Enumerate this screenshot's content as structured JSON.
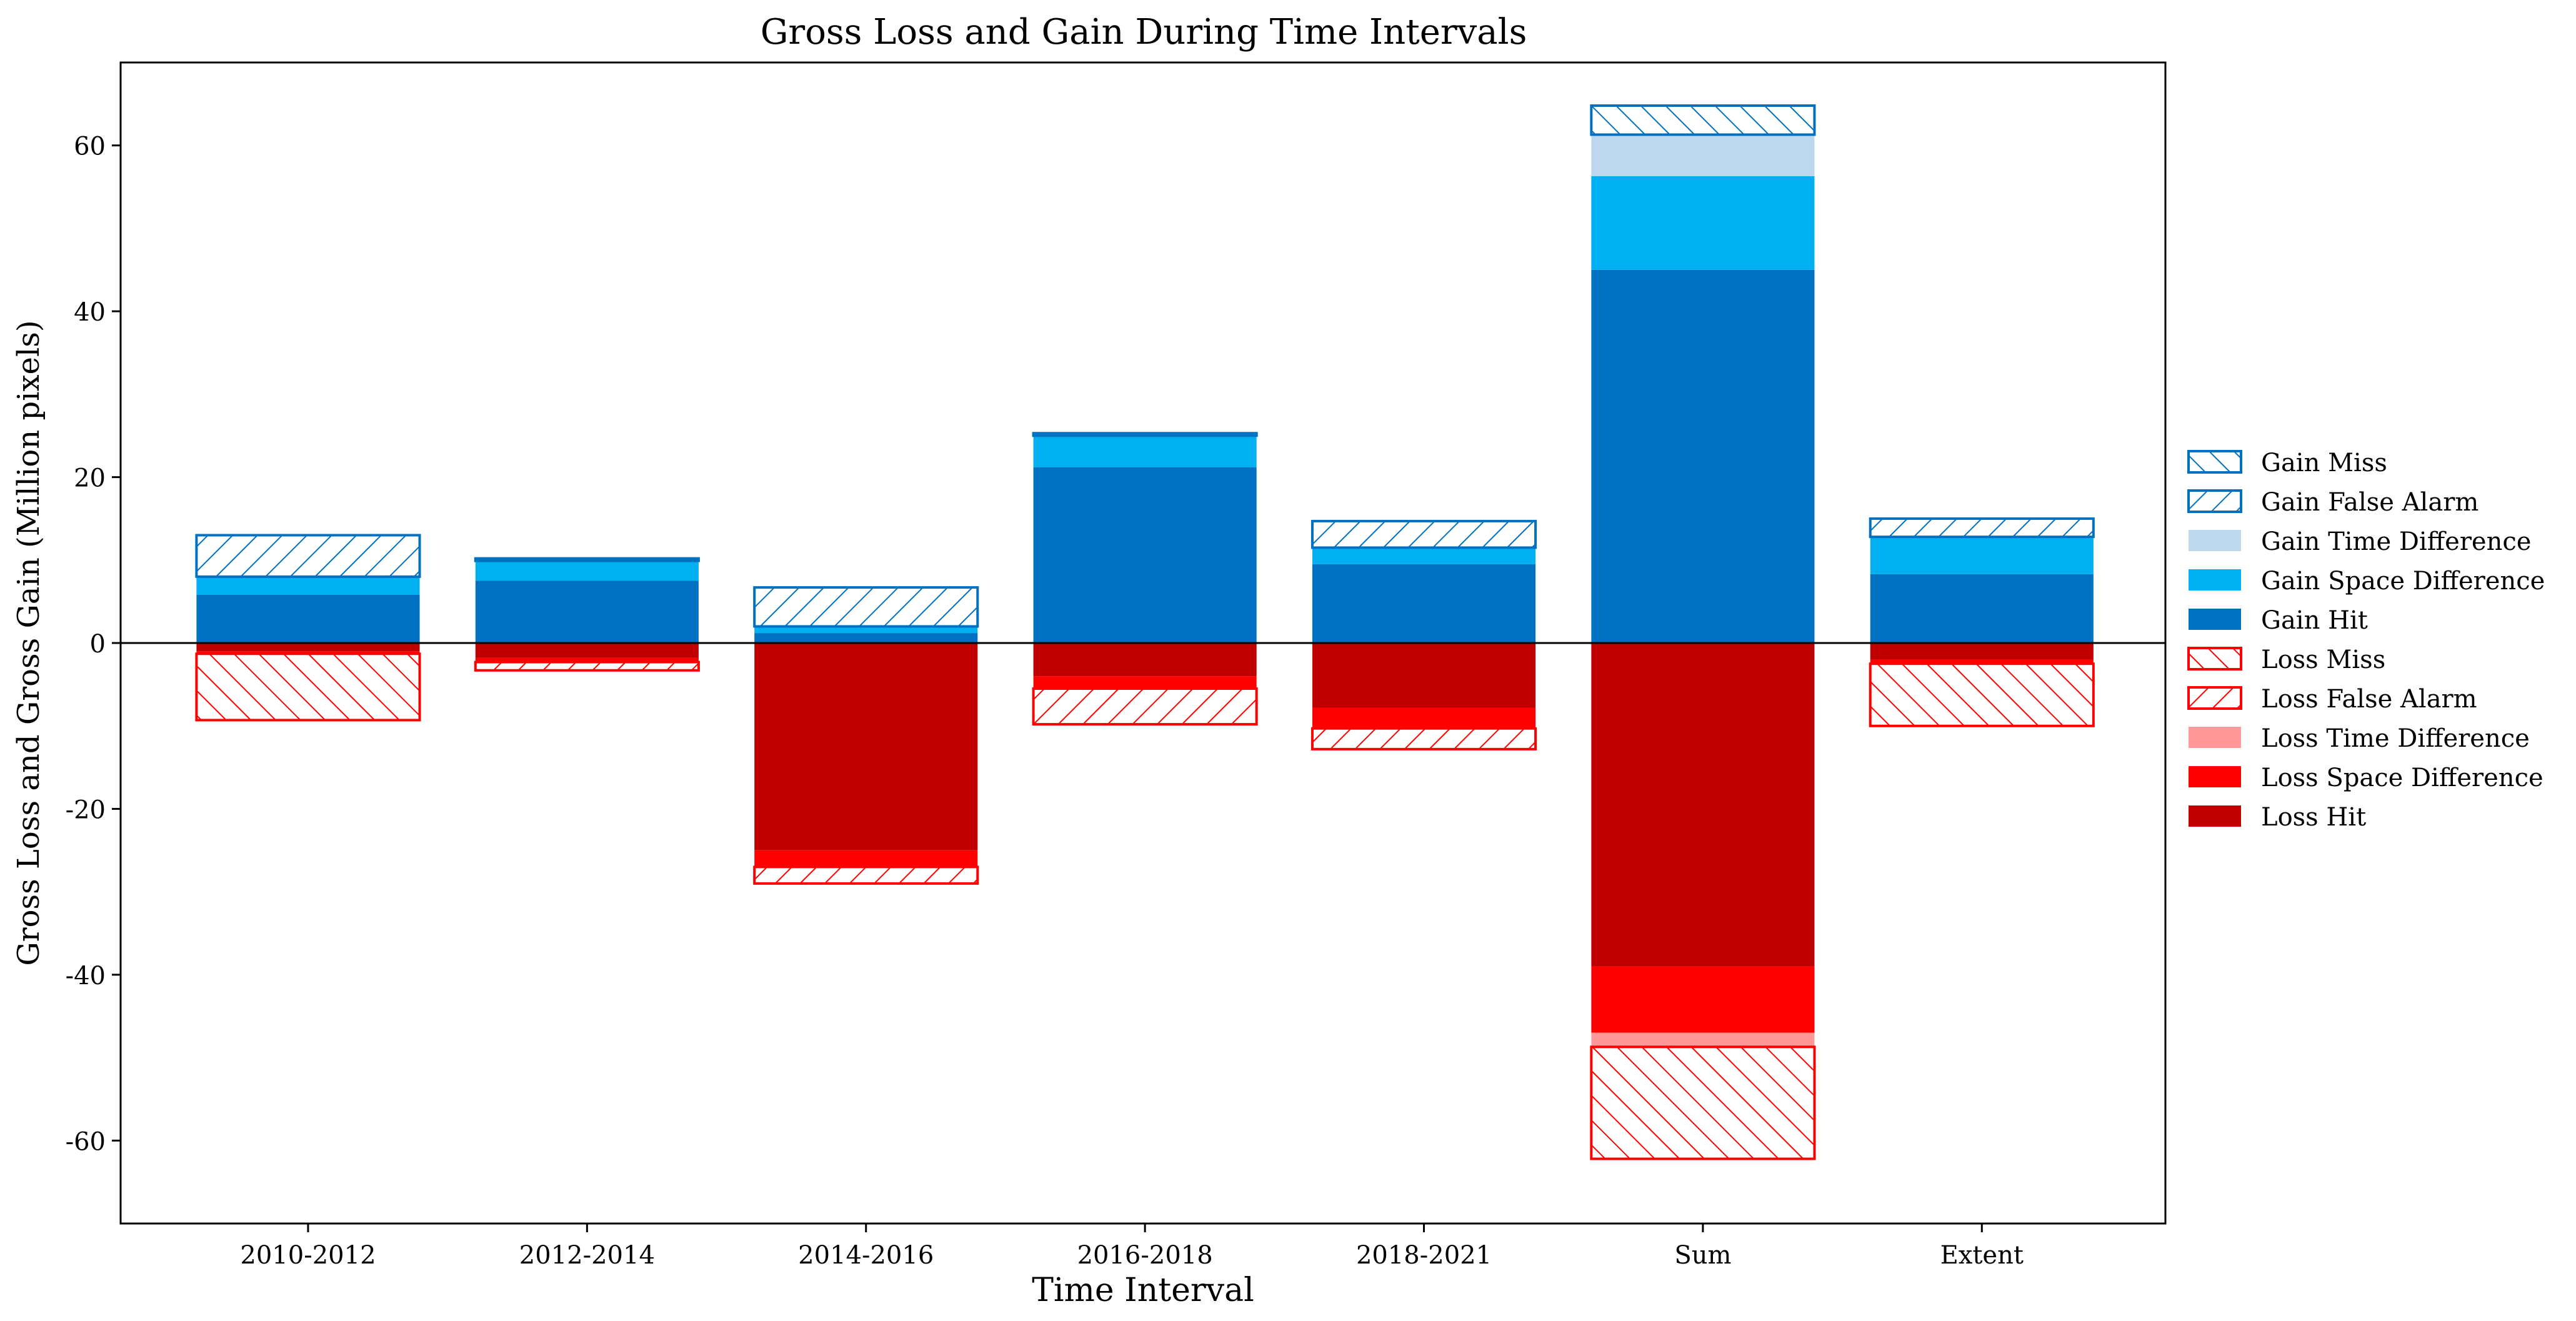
{
  "chart_data": {
    "type": "bar",
    "title": "Gross Loss and Gain During Time Intervals",
    "xlabel": "Time Interval",
    "ylabel": "Gross Loss and Gross Gain (Million pixels)",
    "ylim": [
      -70,
      70
    ],
    "yticks": [
      -60,
      -40,
      -20,
      0,
      20,
      40,
      60
    ],
    "ytick_labels": [
      "-60",
      "-40",
      "-20",
      "0",
      "20",
      "40",
      "60"
    ],
    "categories": [
      "2010-2012",
      "2012-2014",
      "2014-2016",
      "2016-2018",
      "2018-2021",
      "Sum",
      "Extent"
    ],
    "grid": false,
    "legend_position": "right, outside plot",
    "stack_order_gain": [
      "Gain Hit",
      "Gain Space Difference",
      "Gain Time Difference",
      "Gain False Alarm",
      "Gain Miss"
    ],
    "stack_order_loss": [
      "Loss Hit",
      "Loss Space Difference",
      "Loss Time Difference",
      "Loss False Alarm",
      "Loss Miss"
    ],
    "series": [
      {
        "name": "Gain Miss",
        "color": "#0070c0",
        "pattern": "hatch-backslash",
        "values": [
          0,
          0.3,
          0,
          0.3,
          0,
          3.5,
          0
        ]
      },
      {
        "name": "Gain False Alarm",
        "color": "#0070c0",
        "pattern": "hatch-slash",
        "values": [
          5.0,
          0,
          4.7,
          0,
          3.2,
          0,
          2.2
        ]
      },
      {
        "name": "Gain Time Difference",
        "color": "#bdd7ee",
        "pattern": "solid",
        "values": [
          0,
          0,
          0,
          0,
          0,
          5.0,
          0
        ]
      },
      {
        "name": "Gain Space Difference",
        "color": "#00b0f0",
        "pattern": "solid",
        "values": [
          2.2,
          2.4,
          0.8,
          3.8,
          2.0,
          11.3,
          4.5
        ]
      },
      {
        "name": "Gain Hit",
        "color": "#0070c0",
        "pattern": "solid",
        "values": [
          5.8,
          7.5,
          1.2,
          21.2,
          9.5,
          45.0,
          8.3
        ]
      },
      {
        "name": "Loss Miss",
        "color": "#ff0000",
        "pattern": "hatch-backslash",
        "values": [
          8.0,
          0,
          0,
          0,
          0,
          13.5,
          7.5
        ]
      },
      {
        "name": "Loss False Alarm",
        "color": "#ff0000",
        "pattern": "hatch-slash",
        "values": [
          0,
          1.0,
          2.0,
          4.3,
          2.5,
          0,
          0
        ]
      },
      {
        "name": "Loss Time Difference",
        "color": "#ff9999",
        "pattern": "solid",
        "values": [
          0,
          0,
          0,
          0,
          0,
          1.7,
          0
        ]
      },
      {
        "name": "Loss Space Difference",
        "color": "#ff0000",
        "pattern": "solid",
        "values": [
          0.3,
          0.5,
          2.0,
          1.5,
          2.5,
          8.0,
          0.5
        ]
      },
      {
        "name": "Loss Hit",
        "color": "#c00000",
        "pattern": "solid",
        "values": [
          1.0,
          1.8,
          25.0,
          4.0,
          7.8,
          39.0,
          2.0
        ]
      }
    ]
  }
}
